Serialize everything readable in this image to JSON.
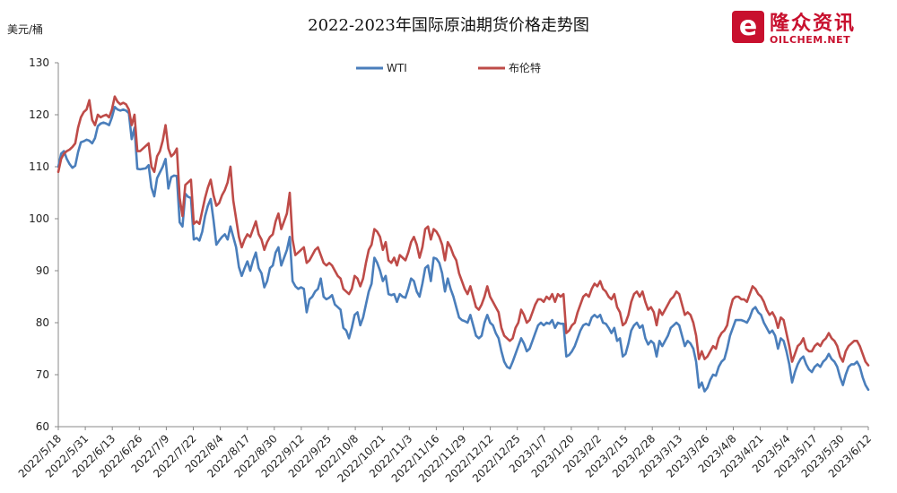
{
  "title": "2022-2023年国际原油期货价格走势图",
  "unit_label": "美元/桶",
  "logo": {
    "cn": "隆众资讯",
    "en": "OILCHEM.NET"
  },
  "chart_data": {
    "type": "line",
    "title": "2022-2023年国际原油期货价格走势图",
    "ylabel": "美元/桶",
    "ylim": [
      60,
      130
    ],
    "yticks": [
      60,
      70,
      80,
      90,
      100,
      110,
      120,
      130
    ],
    "grid": false,
    "legend_position": "top-center",
    "x_tick_labels": [
      "2022/5/18",
      "2022/5/31",
      "2022/6/13",
      "2022/6/26",
      "2022/7/9",
      "2022/7/22",
      "2022/8/4",
      "2022/8/17",
      "2022/8/30",
      "2022/9/12",
      "2022/9/25",
      "2022/10/8",
      "2022/10/21",
      "2022/11/3",
      "2022/11/16",
      "2022/11/29",
      "2022/12/12",
      "2022/12/25",
      "2023/1/7",
      "2023/1/20",
      "2023/2/2",
      "2023/2/15",
      "2023/2/28",
      "2023/3/13",
      "2023/3/26",
      "2023/4/8",
      "2023/4/21",
      "2023/5/4",
      "2023/5/17",
      "2023/5/30",
      "2023/6/12"
    ],
    "series": [
      {
        "name": "WTI",
        "color": "#4a7ebb",
        "values": [
          110.0,
          112.5,
          113.0,
          111.5,
          110.5,
          109.8,
          110.2,
          112.8,
          114.7,
          114.9,
          115.2,
          115.0,
          114.5,
          115.5,
          117.8,
          118.3,
          118.5,
          118.3,
          118.0,
          119.5,
          121.5,
          121.0,
          120.8,
          121.0,
          120.8,
          120.3,
          115.3,
          117.5,
          109.6,
          109.5,
          109.6,
          109.7,
          110.3,
          106.0,
          104.3,
          107.8,
          108.9,
          110.0,
          111.5,
          105.8,
          108.0,
          108.3,
          108.2,
          99.3,
          98.5,
          104.8,
          104.2,
          104.0,
          96.0,
          96.3,
          95.8,
          97.5,
          100.5,
          102.5,
          103.8,
          99.7,
          95.0,
          95.8,
          96.5,
          97.0,
          96.0,
          98.5,
          96.5,
          94.5,
          90.7,
          89.0,
          90.5,
          91.8,
          90.0,
          92.0,
          93.5,
          90.5,
          89.5,
          86.8,
          88.0,
          90.5,
          91.0,
          93.5,
          94.5,
          91.0,
          92.5,
          94.0,
          96.5,
          88.0,
          87.0,
          86.5,
          86.8,
          86.5,
          82.0,
          84.5,
          85.0,
          86.0,
          86.5,
          88.5,
          85.0,
          84.5,
          84.8,
          85.3,
          83.5,
          83.0,
          82.5,
          79.0,
          78.5,
          77.0,
          79.0,
          81.5,
          82.0,
          79.5,
          81.0,
          83.5,
          86.0,
          87.5,
          92.5,
          91.5,
          90.0,
          88.0,
          89.0,
          85.5,
          85.3,
          85.5,
          84.0,
          85.5,
          85.0,
          84.8,
          86.5,
          88.5,
          88.0,
          86.0,
          85.0,
          87.5,
          90.5,
          91.0,
          88.0,
          92.5,
          92.3,
          91.5,
          89.5,
          86.0,
          88.5,
          86.5,
          85.0,
          83.0,
          81.0,
          80.5,
          80.3,
          80.0,
          81.5,
          79.5,
          77.5,
          77.0,
          77.5,
          80.0,
          81.5,
          80.0,
          79.5,
          78.0,
          77.0,
          74.5,
          72.5,
          71.5,
          71.2,
          72.5,
          74.0,
          75.5,
          77.0,
          76.0,
          74.5,
          75.0,
          76.5,
          78.0,
          79.5,
          80.0,
          79.5,
          80.0,
          79.8,
          80.5,
          79.0,
          80.0,
          79.8,
          79.8,
          73.5,
          73.8,
          74.5,
          75.5,
          77.0,
          78.5,
          79.5,
          79.8,
          79.5,
          81.0,
          81.5,
          81.0,
          81.5,
          80.0,
          79.8,
          79.0,
          78.0,
          79.0,
          76.5,
          77.0,
          73.5,
          74.0,
          76.0,
          78.5,
          79.5,
          80.0,
          79.0,
          79.5,
          77.0,
          75.8,
          76.5,
          76.0,
          73.5,
          76.5,
          75.5,
          76.5,
          77.5,
          79.0,
          79.5,
          80.0,
          79.5,
          77.5,
          75.5,
          76.5,
          76.0,
          75.0,
          72.5,
          67.5,
          68.5,
          66.8,
          67.5,
          69.0,
          70.0,
          69.8,
          71.5,
          72.5,
          73.0,
          75.0,
          77.5,
          79.0,
          80.5,
          80.5,
          80.5,
          80.3,
          80.0,
          81.0,
          82.5,
          83.0,
          82.0,
          81.5,
          80.0,
          79.0,
          78.0,
          78.5,
          77.5,
          75.0,
          77.0,
          76.5,
          74.5,
          72.0,
          68.5,
          70.5,
          72.0,
          73.0,
          73.5,
          72.0,
          71.0,
          70.5,
          71.5,
          72.0,
          71.5,
          72.5,
          73.0,
          74.0,
          73.0,
          72.5,
          71.5,
          69.5,
          68.0,
          70.0,
          71.5,
          72.0,
          72.0,
          72.5,
          71.5,
          69.5,
          68.0,
          67.1
        ]
      },
      {
        "name": "布伦特",
        "color": "#be4b48",
        "values": [
          109.0,
          111.5,
          112.5,
          113.0,
          113.3,
          113.8,
          114.5,
          117.5,
          119.5,
          120.5,
          121.0,
          122.8,
          119.0,
          118.0,
          120.0,
          119.5,
          119.8,
          120.0,
          119.5,
          121.0,
          123.5,
          122.5,
          122.0,
          122.3,
          122.0,
          121.0,
          118.0,
          120.0,
          113.0,
          113.0,
          113.5,
          114.0,
          114.5,
          110.0,
          109.0,
          112.0,
          113.0,
          115.0,
          118.0,
          113.5,
          112.0,
          112.5,
          113.5,
          104.0,
          100.5,
          106.5,
          107.0,
          107.5,
          99.0,
          99.5,
          99.0,
          101.5,
          104.0,
          106.0,
          107.5,
          104.5,
          102.5,
          103.0,
          104.5,
          105.5,
          107.0,
          110.0,
          103.5,
          100.0,
          96.5,
          94.5,
          96.0,
          97.0,
          96.5,
          98.0,
          99.5,
          97.0,
          96.0,
          94.0,
          95.5,
          96.5,
          97.0,
          99.5,
          101.0,
          98.0,
          99.5,
          101.0,
          105.0,
          96.0,
          93.0,
          93.5,
          94.0,
          94.5,
          91.5,
          92.0,
          93.0,
          94.0,
          94.5,
          93.0,
          91.5,
          91.0,
          91.5,
          91.0,
          90.0,
          89.0,
          88.5,
          86.5,
          86.0,
          85.5,
          86.5,
          89.0,
          88.5,
          87.0,
          88.5,
          91.5,
          94.0,
          95.0,
          98.0,
          97.5,
          96.5,
          94.0,
          95.5,
          92.0,
          91.5,
          92.5,
          91.0,
          93.0,
          92.5,
          92.0,
          93.5,
          95.5,
          96.5,
          95.0,
          92.5,
          94.5,
          98.0,
          98.5,
          96.0,
          98.0,
          97.5,
          96.5,
          95.0,
          92.0,
          95.5,
          94.5,
          93.0,
          92.0,
          89.5,
          88.0,
          86.5,
          85.5,
          87.0,
          85.0,
          83.0,
          82.5,
          83.5,
          85.0,
          87.0,
          85.0,
          84.0,
          83.0,
          82.0,
          79.0,
          77.5,
          77.0,
          76.5,
          77.0,
          79.0,
          80.0,
          82.5,
          81.5,
          80.0,
          80.5,
          82.0,
          83.5,
          84.5,
          84.5,
          84.0,
          85.0,
          84.5,
          85.5,
          84.0,
          85.5,
          85.0,
          85.5,
          78.0,
          78.5,
          79.5,
          80.0,
          82.0,
          83.5,
          85.0,
          85.5,
          85.0,
          86.5,
          87.5,
          87.0,
          88.0,
          86.5,
          86.0,
          85.0,
          84.5,
          85.5,
          83.0,
          82.0,
          79.5,
          80.0,
          81.5,
          84.0,
          85.5,
          86.0,
          85.0,
          86.0,
          84.0,
          82.5,
          83.0,
          82.0,
          79.5,
          82.5,
          81.5,
          82.5,
          83.5,
          84.5,
          85.0,
          86.0,
          85.5,
          83.5,
          81.5,
          82.0,
          81.5,
          80.0,
          77.5,
          73.0,
          74.5,
          73.0,
          73.5,
          74.5,
          75.5,
          75.0,
          77.0,
          78.0,
          78.5,
          79.5,
          82.5,
          84.5,
          85.0,
          85.0,
          84.5,
          84.5,
          84.0,
          85.5,
          87.0,
          86.5,
          85.5,
          85.0,
          84.0,
          82.5,
          81.5,
          82.0,
          81.0,
          79.0,
          81.0,
          80.5,
          78.0,
          75.5,
          72.5,
          74.0,
          75.5,
          76.0,
          77.0,
          75.0,
          74.5,
          74.5,
          75.5,
          76.0,
          75.5,
          76.5,
          77.0,
          78.0,
          77.0,
          76.5,
          75.5,
          73.5,
          72.5,
          74.5,
          75.5,
          76.0,
          76.5,
          76.5,
          75.5,
          74.0,
          72.5,
          71.8
        ]
      }
    ]
  }
}
